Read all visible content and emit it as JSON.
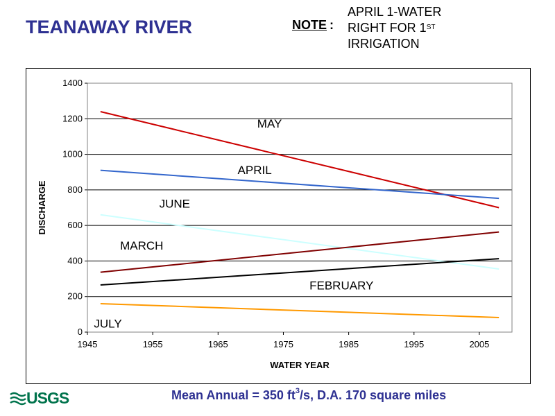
{
  "header": {
    "title": "TEANAWAY RIVER",
    "note_label": "NOTE",
    "note_colon": ":",
    "note_line1": "APRIL 1-WATER",
    "note_line2_main": "RIGHT FOR 1",
    "note_line2_sup": "ST",
    "note_line3": "IRRIGATION"
  },
  "footer": {
    "text_before_sup": "Mean Annual = 350 ft",
    "sup": "3",
    "text_after_sup": "/s, D.A. 170 square miles"
  },
  "logo": {
    "text": "USGS",
    "color": "#00734c"
  },
  "colors": {
    "title": "#2e3192",
    "footer": "#2e3192"
  },
  "chart_data": {
    "type": "line",
    "title": "",
    "xlabel": "WATER YEAR",
    "ylabel": "DISCHARGE",
    "xlim": [
      1945,
      2010
    ],
    "ylim": [
      0,
      1400
    ],
    "xticks": [
      1945,
      1955,
      1965,
      1975,
      1985,
      1995,
      2005
    ],
    "yticks": [
      0,
      200,
      400,
      600,
      800,
      1000,
      1200,
      1400
    ],
    "grid": "horizontal",
    "series": [
      {
        "name": "MAY",
        "color": "#cc0000",
        "x": [
          1947,
          2008
        ],
        "y": [
          1240,
          700
        ]
      },
      {
        "name": "APRIL",
        "color": "#3366cc",
        "x": [
          1947,
          2008
        ],
        "y": [
          910,
          752
        ]
      },
      {
        "name": "JUNE",
        "color": "#ccffff",
        "x": [
          1947,
          2008
        ],
        "y": [
          660,
          355
        ]
      },
      {
        "name": "MARCH",
        "color": "#800000",
        "x": [
          1947,
          2008
        ],
        "y": [
          337,
          563
        ]
      },
      {
        "name": "FEBRUARY",
        "color": "#000000",
        "x": [
          1947,
          2008
        ],
        "y": [
          265,
          413
        ]
      },
      {
        "name": "JULY",
        "color": "#ff9900",
        "x": [
          1947,
          2008
        ],
        "y": [
          160,
          82
        ]
      }
    ],
    "annotations": [
      {
        "text": "MAY",
        "x": 1971,
        "y": 1150
      },
      {
        "text": "APRIL",
        "x": 1968,
        "y": 890
      },
      {
        "text": "JUNE",
        "x": 1956,
        "y": 700
      },
      {
        "text": "MARCH",
        "x": 1950,
        "y": 465
      },
      {
        "text": "FEBRUARY",
        "x": 1979,
        "y": 240
      },
      {
        "text": "JULY",
        "x": 1946,
        "y": 25
      }
    ]
  }
}
